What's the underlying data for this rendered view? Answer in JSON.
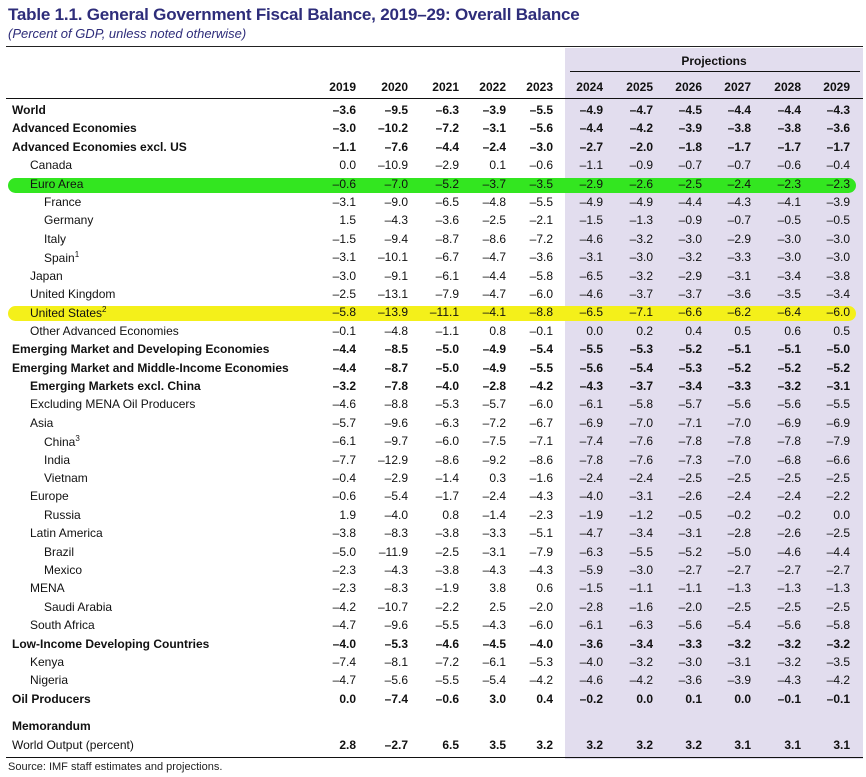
{
  "title": "Table 1.1. General Government Fiscal Balance, 2019–29: Overall Balance",
  "subtitle": "(Percent of GDP, unless noted otherwise)",
  "projections_label": "Projections",
  "years": [
    "2019",
    "2020",
    "2021",
    "2022",
    "2023",
    "2024",
    "2025",
    "2026",
    "2027",
    "2028",
    "2029"
  ],
  "source": "Source: IMF staff estimates and projections.",
  "highlight_colors": {
    "green": "#33e620",
    "yellow": "#f4f01a"
  },
  "projection_shade_color": "#e2ddee",
  "rows": [
    {
      "label": "World",
      "indent": 0,
      "bold": true,
      "values": [
        "–3.6",
        "–9.5",
        "–6.3",
        "–3.9",
        "–5.5",
        "–4.9",
        "–4.7",
        "–4.5",
        "–4.4",
        "–4.4",
        "–4.3"
      ]
    },
    {
      "label": "Advanced Economies",
      "indent": 0,
      "bold": true,
      "values": [
        "–3.0",
        "–10.2",
        "–7.2",
        "–3.1",
        "–5.6",
        "–4.4",
        "–4.2",
        "–3.9",
        "–3.8",
        "–3.8",
        "–3.6"
      ]
    },
    {
      "label": "Advanced Economies excl. US",
      "indent": 0,
      "bold": true,
      "values": [
        "–1.1",
        "–7.6",
        "–4.4",
        "–2.4",
        "–3.0",
        "–2.7",
        "–2.0",
        "–1.8",
        "–1.7",
        "–1.7",
        "–1.7"
      ]
    },
    {
      "label": "Canada",
      "indent": 1,
      "bold": false,
      "values": [
        "0.0",
        "–10.9",
        "–2.9",
        "0.1",
        "–0.6",
        "–1.1",
        "–0.9",
        "–0.7",
        "–0.7",
        "–0.6",
        "–0.4"
      ]
    },
    {
      "label": "Euro Area",
      "indent": 1,
      "bold": false,
      "highlight": "green",
      "values": [
        "–0.6",
        "–7.0",
        "–5.2",
        "–3.7",
        "–3.5",
        "–2.9",
        "–2.6",
        "–2.5",
        "–2.4",
        "–2.3",
        "–2.3"
      ]
    },
    {
      "label": "France",
      "indent": 2,
      "bold": false,
      "values": [
        "–3.1",
        "–9.0",
        "–6.5",
        "–4.8",
        "–5.5",
        "–4.9",
        "–4.9",
        "–4.4",
        "–4.3",
        "–4.1",
        "–3.9"
      ]
    },
    {
      "label": "Germany",
      "indent": 2,
      "bold": false,
      "values": [
        "1.5",
        "–4.3",
        "–3.6",
        "–2.5",
        "–2.1",
        "–1.5",
        "–1.3",
        "–0.9",
        "–0.7",
        "–0.5",
        "–0.5"
      ]
    },
    {
      "label": "Italy",
      "indent": 2,
      "bold": false,
      "values": [
        "–1.5",
        "–9.4",
        "–8.7",
        "–8.6",
        "–7.2",
        "–4.6",
        "–3.2",
        "–3.0",
        "–2.9",
        "–3.0",
        "–3.0"
      ]
    },
    {
      "label": "Spain",
      "sup": "1",
      "indent": 2,
      "bold": false,
      "values": [
        "–3.1",
        "–10.1",
        "–6.7",
        "–4.7",
        "–3.6",
        "–3.1",
        "–3.0",
        "–3.2",
        "–3.3",
        "–3.0",
        "–3.0"
      ]
    },
    {
      "label": "Japan",
      "indent": 1,
      "bold": false,
      "values": [
        "–3.0",
        "–9.1",
        "–6.1",
        "–4.4",
        "–5.8",
        "–6.5",
        "–3.2",
        "–2.9",
        "–3.1",
        "–3.4",
        "–3.8"
      ]
    },
    {
      "label": "United Kingdom",
      "indent": 1,
      "bold": false,
      "values": [
        "–2.5",
        "–13.1",
        "–7.9",
        "–4.7",
        "–6.0",
        "–4.6",
        "–3.7",
        "–3.7",
        "–3.6",
        "–3.5",
        "–3.4"
      ]
    },
    {
      "label": "United States",
      "sup": "2",
      "indent": 1,
      "bold": false,
      "highlight": "yellow",
      "values": [
        "–5.8",
        "–13.9",
        "–11.1",
        "–4.1",
        "–8.8",
        "–6.5",
        "–7.1",
        "–6.6",
        "–6.2",
        "–6.4",
        "–6.0"
      ]
    },
    {
      "label": "Other Advanced Economies",
      "indent": 1,
      "bold": false,
      "values": [
        "–0.1",
        "–4.8",
        "–1.1",
        "0.8",
        "–0.1",
        "0.0",
        "0.2",
        "0.4",
        "0.5",
        "0.6",
        "0.5"
      ]
    },
    {
      "label": "Emerging Market and Developing Economies",
      "indent": 0,
      "bold": true,
      "values": [
        "–4.4",
        "–8.5",
        "–5.0",
        "–4.9",
        "–5.4",
        "–5.5",
        "–5.3",
        "–5.2",
        "–5.1",
        "–5.1",
        "–5.0"
      ]
    },
    {
      "label": "Emerging Market and Middle-Income Economies",
      "indent": 0,
      "bold": true,
      "values": [
        "–4.4",
        "–8.7",
        "–5.0",
        "–4.9",
        "–5.5",
        "–5.6",
        "–5.4",
        "–5.3",
        "–5.2",
        "–5.2",
        "–5.2"
      ]
    },
    {
      "label": "Emerging Markets excl. China",
      "indent": 1,
      "bold": true,
      "values": [
        "–3.2",
        "–7.8",
        "–4.0",
        "–2.8",
        "–4.2",
        "–4.3",
        "–3.7",
        "–3.4",
        "–3.3",
        "–3.2",
        "–3.1"
      ]
    },
    {
      "label": "Excluding MENA Oil Producers",
      "indent": 1,
      "bold": false,
      "values": [
        "–4.6",
        "–8.8",
        "–5.3",
        "–5.7",
        "–6.0",
        "–6.1",
        "–5.8",
        "–5.7",
        "–5.6",
        "–5.6",
        "–5.5"
      ]
    },
    {
      "label": "Asia",
      "indent": 1,
      "bold": false,
      "values": [
        "–5.7",
        "–9.6",
        "–6.3",
        "–7.2",
        "–6.7",
        "–6.9",
        "–7.0",
        "–7.1",
        "–7.0",
        "–6.9",
        "–6.9"
      ]
    },
    {
      "label": "China",
      "sup": "3",
      "indent": 2,
      "bold": false,
      "values": [
        "–6.1",
        "–9.7",
        "–6.0",
        "–7.5",
        "–7.1",
        "–7.4",
        "–7.6",
        "–7.8",
        "–7.8",
        "–7.8",
        "–7.9"
      ]
    },
    {
      "label": "India",
      "indent": 2,
      "bold": false,
      "values": [
        "–7.7",
        "–12.9",
        "–8.6",
        "–9.2",
        "–8.6",
        "–7.8",
        "–7.6",
        "–7.3",
        "–7.0",
        "–6.8",
        "–6.6"
      ]
    },
    {
      "label": "Vietnam",
      "indent": 2,
      "bold": false,
      "values": [
        "–0.4",
        "–2.9",
        "–1.4",
        "0.3",
        "–1.6",
        "–2.4",
        "–2.4",
        "–2.5",
        "–2.5",
        "–2.5",
        "–2.5"
      ]
    },
    {
      "label": "Europe",
      "indent": 1,
      "bold": false,
      "values": [
        "–0.6",
        "–5.4",
        "–1.7",
        "–2.4",
        "–4.3",
        "–4.0",
        "–3.1",
        "–2.6",
        "–2.4",
        "–2.4",
        "–2.2"
      ]
    },
    {
      "label": "Russia",
      "indent": 2,
      "bold": false,
      "values": [
        "1.9",
        "–4.0",
        "0.8",
        "–1.4",
        "–2.3",
        "–1.9",
        "–1.2",
        "–0.5",
        "–0.2",
        "–0.2",
        "0.0"
      ]
    },
    {
      "label": "Latin America",
      "indent": 1,
      "bold": false,
      "values": [
        "–3.8",
        "–8.3",
        "–3.8",
        "–3.3",
        "–5.1",
        "–4.7",
        "–3.4",
        "–3.1",
        "–2.8",
        "–2.6",
        "–2.5"
      ]
    },
    {
      "label": "Brazil",
      "indent": 2,
      "bold": false,
      "values": [
        "–5.0",
        "–11.9",
        "–2.5",
        "–3.1",
        "–7.9",
        "–6.3",
        "–5.5",
        "–5.2",
        "–5.0",
        "–4.6",
        "–4.4"
      ]
    },
    {
      "label": "Mexico",
      "indent": 2,
      "bold": false,
      "values": [
        "–2.3",
        "–4.3",
        "–3.8",
        "–4.3",
        "–4.3",
        "–5.9",
        "–3.0",
        "–2.7",
        "–2.7",
        "–2.7",
        "–2.7"
      ]
    },
    {
      "label": "MENA",
      "indent": 1,
      "bold": false,
      "values": [
        "–2.3",
        "–8.3",
        "–1.9",
        "3.8",
        "0.6",
        "–1.5",
        "–1.1",
        "–1.1",
        "–1.3",
        "–1.3",
        "–1.3"
      ]
    },
    {
      "label": "Saudi Arabia",
      "indent": 2,
      "bold": false,
      "values": [
        "–4.2",
        "–10.7",
        "–2.2",
        "2.5",
        "–2.0",
        "–2.8",
        "–1.6",
        "–2.0",
        "–2.5",
        "–2.5",
        "–2.5"
      ]
    },
    {
      "label": "South Africa",
      "indent": 1,
      "bold": false,
      "values": [
        "–4.7",
        "–9.6",
        "–5.5",
        "–4.3",
        "–6.0",
        "–6.1",
        "–6.3",
        "–5.6",
        "–5.4",
        "–5.6",
        "–5.8"
      ]
    },
    {
      "label": "Low-Income Developing Countries",
      "indent": 0,
      "bold": true,
      "values": [
        "–4.0",
        "–5.3",
        "–4.6",
        "–4.5",
        "–4.0",
        "–3.6",
        "–3.4",
        "–3.3",
        "–3.2",
        "–3.2",
        "–3.2"
      ]
    },
    {
      "label": "Kenya",
      "indent": 1,
      "bold": false,
      "values": [
        "–7.4",
        "–8.1",
        "–7.2",
        "–6.1",
        "–5.3",
        "–4.0",
        "–3.2",
        "–3.0",
        "–3.1",
        "–3.2",
        "–3.5"
      ]
    },
    {
      "label": "Nigeria",
      "indent": 1,
      "bold": false,
      "values": [
        "–4.7",
        "–5.6",
        "–5.5",
        "–5.4",
        "–4.2",
        "–4.6",
        "–4.2",
        "–3.6",
        "–3.9",
        "–4.3",
        "–4.2"
      ]
    },
    {
      "label": "Oil Producers",
      "indent": 0,
      "bold": true,
      "values": [
        "0.0",
        "–7.4",
        "–0.6",
        "3.0",
        "0.4",
        "–0.2",
        "0.0",
        "0.1",
        "0.0",
        "–0.1",
        "–0.1"
      ]
    },
    {
      "label": "Memorandum",
      "indent": 0,
      "bold": true,
      "gap": true,
      "values": []
    },
    {
      "label": "World Output (percent)",
      "indent": 0,
      "bold": false,
      "boldValues": true,
      "values": [
        "2.8",
        "–2.7",
        "6.5",
        "3.5",
        "3.2",
        "3.2",
        "3.2",
        "3.2",
        "3.1",
        "3.1",
        "3.1"
      ]
    }
  ]
}
